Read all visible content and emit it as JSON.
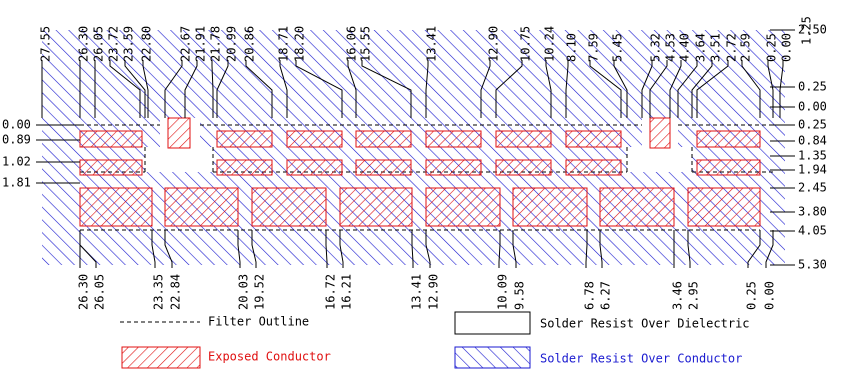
{
  "top_labels": [
    "27.55",
    "26.30",
    "26.05",
    "23.72",
    "23.59",
    "22.80",
    "22.67",
    "21.91",
    "21.78",
    "20.99",
    "20.86",
    "18.71",
    "18.20",
    "16.06",
    "15.55",
    "13.41",
    "12.90",
    "10.75",
    "10.24",
    "8.10",
    "7.59",
    "5.45",
    "5.32",
    "4.53",
    "4.40",
    "3.64",
    "3.51",
    "2.72",
    "2.59",
    "0.25",
    "0.00",
    "1.25"
  ],
  "right_labels": [
    "2.50",
    "0.25",
    "0.00",
    "0.25",
    "0.84",
    "1.35",
    "1.94",
    "2.45",
    "3.80",
    "4.05",
    "5.30"
  ],
  "left_labels": [
    "0.00",
    "0.89",
    "1.02",
    "1.81"
  ],
  "bottom_labels": [
    "26.30",
    "26.05",
    "23.35",
    "22.84",
    "20.03",
    "19.52",
    "16.72",
    "16.21",
    "13.41",
    "12.90",
    "10.09",
    "9.58",
    "6.78",
    "6.27",
    "3.46",
    "2.95",
    "0.25",
    "0.00"
  ],
  "legend": {
    "filter_outline": "Filter Outline",
    "solder_resist_over_dielectric": "Solder Resist Over Dielectric",
    "exposed_conductor": "Exposed Conductor",
    "solder_resist_over_conductor": "Solder Resist Over Conductor"
  }
}
